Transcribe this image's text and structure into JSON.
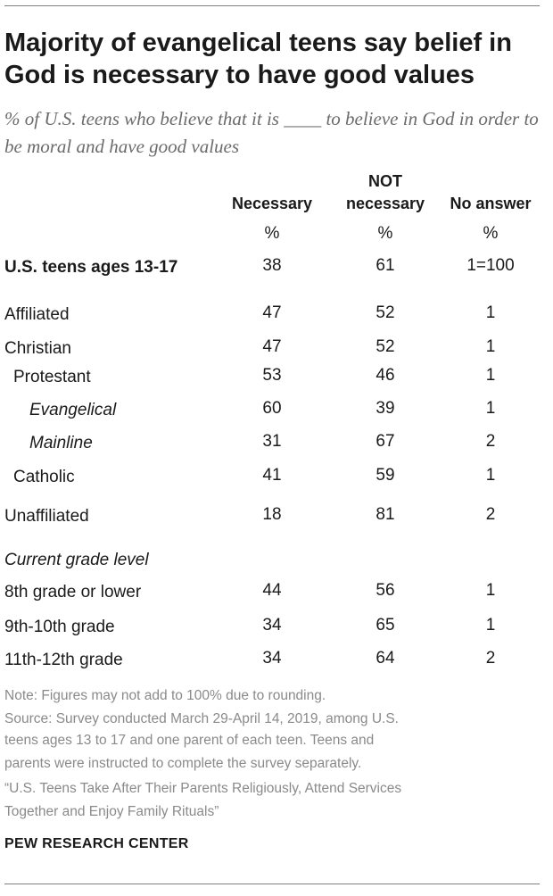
{
  "title": "Majority of evangelical teens say belief in God is necessary to have good values",
  "subtitle": "% of U.S. teens who believe that it is ____ to believe in God in order to be moral and have good values",
  "chart_data": {
    "type": "table",
    "columns": [
      {
        "label_line1": "",
        "label_line2": "Necessary",
        "unit": "%"
      },
      {
        "label_line1": "NOT",
        "label_line2": "necessary",
        "unit": "%"
      },
      {
        "label_line1": "",
        "label_line2": "No answer",
        "unit": "%"
      }
    ],
    "rows": [
      {
        "label": "U.S. teens ages 13-17",
        "values": [
          "38",
          "61",
          "1=100"
        ],
        "style": "bold"
      },
      {
        "label": "Affiliated",
        "values": [
          "47",
          "52",
          "1"
        ],
        "style": "normal"
      },
      {
        "label": "Christian",
        "values": [
          "47",
          "52",
          "1"
        ],
        "style": "normal"
      },
      {
        "label": "Protestant",
        "values": [
          "53",
          "46",
          "1"
        ],
        "style": "indent1"
      },
      {
        "label": "Evangelical",
        "values": [
          "60",
          "39",
          "1"
        ],
        "style": "indent2-italic"
      },
      {
        "label": "Mainline",
        "values": [
          "31",
          "67",
          "2"
        ],
        "style": "indent2-italic"
      },
      {
        "label": "Catholic",
        "values": [
          "41",
          "59",
          "1"
        ],
        "style": "indent1"
      },
      {
        "label": "Unaffiliated",
        "values": [
          "18",
          "81",
          "2"
        ],
        "style": "normal"
      },
      {
        "label": "Current grade level",
        "values": [
          "",
          "",
          ""
        ],
        "style": "section-italic"
      },
      {
        "label": "8th grade or lower",
        "values": [
          "44",
          "56",
          "1"
        ],
        "style": "normal"
      },
      {
        "label": "9th-10th grade",
        "values": [
          "34",
          "65",
          "1"
        ],
        "style": "normal"
      },
      {
        "label": "11th-12th grade",
        "values": [
          "34",
          "64",
          "2"
        ],
        "style": "normal"
      }
    ]
  },
  "notes": {
    "note": "Note: Figures may not add to 100% due to rounding.",
    "source_line1": "Source: Survey conducted March 29-April 14, 2019, among U.S.",
    "source_line2": "teens ages 13 to 17 and one parent of each teen. Teens and",
    "source_line3": "parents were instructed to complete the survey separately.",
    "report_line1": "“U.S. Teens Take After Their Parents Religiously, Attend Services",
    "report_line2": "Together and Enjoy Family Rituals”"
  },
  "source_name": "PEW RESEARCH CENTER",
  "colors": {
    "text": "#1a1a1a",
    "subtitle": "#6b6b6b",
    "note": "#8a8a8a",
    "rule": "#7f7f7f"
  }
}
